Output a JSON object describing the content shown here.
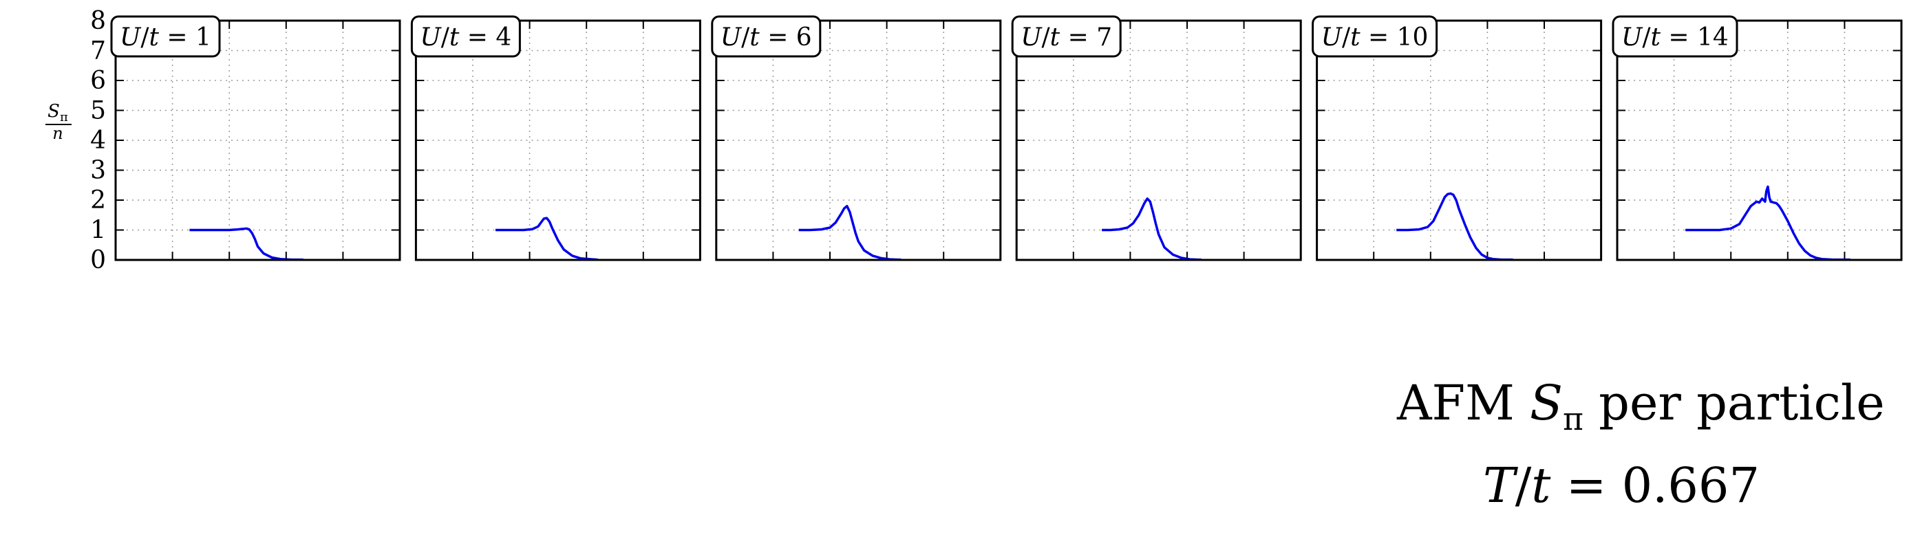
{
  "chart_data": {
    "type": "line",
    "ylabel": {
      "num": "S",
      "sub": "π",
      "den": "n"
    },
    "ylim": [
      0,
      8
    ],
    "yticks": [
      0,
      1,
      2,
      3,
      4,
      5,
      6,
      7,
      8
    ],
    "xlim": [
      0,
      1
    ],
    "grid": true,
    "line_color": "#0000ee",
    "panels": [
      {
        "label": "U/t = 1",
        "x": [
          0.26,
          0.3,
          0.35,
          0.4,
          0.43,
          0.45,
          0.46,
          0.47,
          0.48,
          0.49,
          0.5,
          0.52,
          0.55,
          0.58,
          0.62,
          0.66
        ],
        "values": [
          1.0,
          1.0,
          1.0,
          1.0,
          1.02,
          1.04,
          1.05,
          1.02,
          0.9,
          0.7,
          0.45,
          0.22,
          0.08,
          0.03,
          0.01,
          0.01
        ]
      },
      {
        "label": "U/t = 4",
        "x": [
          0.28,
          0.33,
          0.38,
          0.41,
          0.43,
          0.44,
          0.45,
          0.46,
          0.47,
          0.48,
          0.5,
          0.52,
          0.55,
          0.58,
          0.62,
          0.64
        ],
        "values": [
          1.0,
          1.0,
          1.0,
          1.03,
          1.12,
          1.25,
          1.38,
          1.4,
          1.28,
          1.05,
          0.65,
          0.35,
          0.14,
          0.05,
          0.02,
          0.01
        ]
      },
      {
        "label": "U/t = 6",
        "x": [
          0.29,
          0.33,
          0.37,
          0.4,
          0.42,
          0.44,
          0.45,
          0.46,
          0.47,
          0.48,
          0.49,
          0.5,
          0.52,
          0.55,
          0.58,
          0.61,
          0.64,
          0.65
        ],
        "values": [
          1.0,
          1.0,
          1.02,
          1.08,
          1.25,
          1.55,
          1.72,
          1.8,
          1.6,
          1.25,
          0.9,
          0.62,
          0.32,
          0.14,
          0.06,
          0.02,
          0.01,
          0.01
        ]
      },
      {
        "label": "U/t = 7",
        "x": [
          0.3,
          0.33,
          0.36,
          0.39,
          0.41,
          0.43,
          0.45,
          0.46,
          0.47,
          0.48,
          0.49,
          0.5,
          0.52,
          0.55,
          0.58,
          0.61,
          0.64,
          0.65
        ],
        "values": [
          1.0,
          1.0,
          1.02,
          1.08,
          1.22,
          1.5,
          1.9,
          2.05,
          1.95,
          1.6,
          1.2,
          0.85,
          0.42,
          0.18,
          0.07,
          0.02,
          0.01,
          0.01
        ]
      },
      {
        "label": "U/t = 10",
        "x": [
          0.28,
          0.32,
          0.36,
          0.39,
          0.41,
          0.43,
          0.45,
          0.46,
          0.47,
          0.48,
          0.49,
          0.5,
          0.52,
          0.54,
          0.56,
          0.58,
          0.6,
          0.62,
          0.65,
          0.69
        ],
        "values": [
          1.0,
          1.0,
          1.02,
          1.1,
          1.3,
          1.7,
          2.1,
          2.2,
          2.22,
          2.18,
          2.0,
          1.7,
          1.2,
          0.75,
          0.4,
          0.18,
          0.07,
          0.03,
          0.01,
          0.01
        ]
      },
      {
        "label": "U/t = 14",
        "x": [
          0.24,
          0.28,
          0.32,
          0.36,
          0.4,
          0.43,
          0.45,
          0.47,
          0.49,
          0.5,
          0.51,
          0.52,
          0.525,
          0.53,
          0.535,
          0.54,
          0.55,
          0.56,
          0.57,
          0.58,
          0.6,
          0.62,
          0.64,
          0.66,
          0.68,
          0.7,
          0.72,
          0.76,
          0.82
        ],
        "values": [
          1.0,
          1.0,
          1.0,
          1.0,
          1.05,
          1.2,
          1.5,
          1.8,
          1.95,
          1.92,
          2.05,
          1.95,
          2.3,
          2.45,
          2.1,
          1.95,
          1.92,
          1.9,
          1.8,
          1.65,
          1.3,
          0.9,
          0.55,
          0.3,
          0.15,
          0.07,
          0.03,
          0.01,
          0.01
        ]
      }
    ]
  },
  "caption": {
    "line1": "AFM S_π per particle",
    "line2": "T/t = 0.667"
  }
}
